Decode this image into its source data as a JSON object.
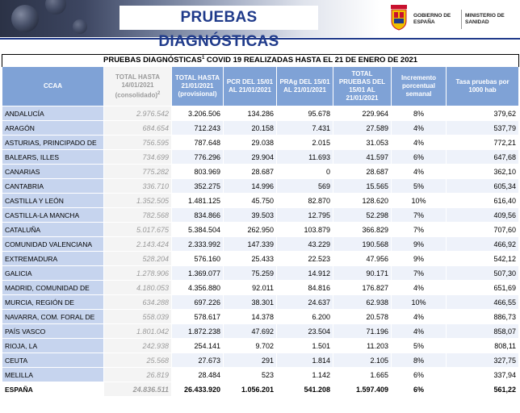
{
  "banner": {
    "title": "PRUEBAS DIAGNÓSTICAS",
    "gov_left": "GOBIERNO DE ESPAÑA",
    "gov_right": "MINISTERIO DE SANIDAD"
  },
  "table": {
    "caption": "PRUEBAS DIAGNÓSTICAS",
    "caption_sup": "1",
    "caption_rest": " COVID 19 REALIZADAS HASTA EL 21 DE ENERO DE 2021",
    "headers": {
      "ccaa": "CCAA",
      "ref_total": "TOTAL HASTA 14/01/2021 (consolidado)",
      "ref_sup": "2",
      "total_hasta": "TOTAL HASTA 21/01/2021 (provisional)",
      "pcr": "PCR DEL 15/01 AL 21/01/2021",
      "prag": "PRAg DEL 15/01 AL 21/01/2021",
      "total_pruebas": "TOTAL PRUEBAS DEL 15/01 AL 21/01/2021",
      "incremento": "Incremento porcentual semanal",
      "tasa": "Tasa pruebas por 1000 hab"
    },
    "rows": [
      {
        "ccaa": "ANDALUCÍA",
        "ref": "2.976.542",
        "total": "3.206.506",
        "pcr": "134.286",
        "prag": "95.678",
        "tp": "229.964",
        "inc": "8%",
        "tasa": "379,62"
      },
      {
        "ccaa": "ARAGÓN",
        "ref": "684.654",
        "total": "712.243",
        "pcr": "20.158",
        "prag": "7.431",
        "tp": "27.589",
        "inc": "4%",
        "tasa": "537,79"
      },
      {
        "ccaa": "ASTURIAS, PRINCIPADO DE",
        "ref": "756.595",
        "total": "787.648",
        "pcr": "29.038",
        "prag": "2.015",
        "tp": "31.053",
        "inc": "4%",
        "tasa": "772,21"
      },
      {
        "ccaa": "BALEARS, ILLES",
        "ref": "734.699",
        "total": "776.296",
        "pcr": "29.904",
        "prag": "11.693",
        "tp": "41.597",
        "inc": "6%",
        "tasa": "647,68"
      },
      {
        "ccaa": "CANARIAS",
        "ref": "775.282",
        "total": "803.969",
        "pcr": "28.687",
        "prag": "0",
        "tp": "28.687",
        "inc": "4%",
        "tasa": "362,10"
      },
      {
        "ccaa": "CANTABRIA",
        "ref": "336.710",
        "total": "352.275",
        "pcr": "14.996",
        "prag": "569",
        "tp": "15.565",
        "inc": "5%",
        "tasa": "605,34"
      },
      {
        "ccaa": "CASTILLA Y LEÓN",
        "ref": "1.352.505",
        "total": "1.481.125",
        "pcr": "45.750",
        "prag": "82.870",
        "tp": "128.620",
        "inc": "10%",
        "tasa": "616,40"
      },
      {
        "ccaa": "CASTILLA-LA MANCHA",
        "ref": "782.568",
        "total": "834.866",
        "pcr": "39.503",
        "prag": "12.795",
        "tp": "52.298",
        "inc": "7%",
        "tasa": "409,56"
      },
      {
        "ccaa": "CATALUÑA",
        "ref": "5.017.675",
        "total": "5.384.504",
        "pcr": "262.950",
        "prag": "103.879",
        "tp": "366.829",
        "inc": "7%",
        "tasa": "707,60"
      },
      {
        "ccaa": "COMUNIDAD VALENCIANA",
        "ref": "2.143.424",
        "total": "2.333.992",
        "pcr": "147.339",
        "prag": "43.229",
        "tp": "190.568",
        "inc": "9%",
        "tasa": "466,92"
      },
      {
        "ccaa": "EXTREMADURA",
        "ref": "528.204",
        "total": "576.160",
        "pcr": "25.433",
        "prag": "22.523",
        "tp": "47.956",
        "inc": "9%",
        "tasa": "542,12"
      },
      {
        "ccaa": "GALICIA",
        "ref": "1.278.906",
        "total": "1.369.077",
        "pcr": "75.259",
        "prag": "14.912",
        "tp": "90.171",
        "inc": "7%",
        "tasa": "507,30"
      },
      {
        "ccaa": "MADRID, COMUNIDAD DE",
        "ref": "4.180.053",
        "total": "4.356.880",
        "pcr": "92.011",
        "prag": "84.816",
        "tp": "176.827",
        "inc": "4%",
        "tasa": "651,69"
      },
      {
        "ccaa": "MURCIA, REGIÓN DE",
        "ref": "634.288",
        "total": "697.226",
        "pcr": "38.301",
        "prag": "24.637",
        "tp": "62.938",
        "inc": "10%",
        "tasa": "466,55"
      },
      {
        "ccaa": "NAVARRA, COM. FORAL DE",
        "ref": "558.039",
        "total": "578.617",
        "pcr": "14.378",
        "prag": "6.200",
        "tp": "20.578",
        "inc": "4%",
        "tasa": "886,73"
      },
      {
        "ccaa": "PAÍS VASCO",
        "ref": "1.801.042",
        "total": "1.872.238",
        "pcr": "47.692",
        "prag": "23.504",
        "tp": "71.196",
        "inc": "4%",
        "tasa": "858,07"
      },
      {
        "ccaa": "RIOJA, LA",
        "ref": "242.938",
        "total": "254.141",
        "pcr": "9.702",
        "prag": "1.501",
        "tp": "11.203",
        "inc": "5%",
        "tasa": "808,11"
      },
      {
        "ccaa": "CEUTA",
        "ref": "25.568",
        "total": "27.673",
        "pcr": "291",
        "prag": "1.814",
        "tp": "2.105",
        "inc": "8%",
        "tasa": "327,75"
      },
      {
        "ccaa": "MELILLA",
        "ref": "26.819",
        "total": "28.484",
        "pcr": "523",
        "prag": "1.142",
        "tp": "1.665",
        "inc": "6%",
        "tasa": "337,94"
      }
    ],
    "total": {
      "ccaa": "ESPAÑA",
      "ref": "24.836.511",
      "total": "26.433.920",
      "pcr": "1.056.201",
      "prag": "541.208",
      "tp": "1.597.409",
      "inc": "6%",
      "tasa": "561,22"
    }
  },
  "colors": {
    "header_blue": "#7fa2d6",
    "name_cell": "#c6d4ee",
    "title_blue": "#1f3a8a"
  }
}
